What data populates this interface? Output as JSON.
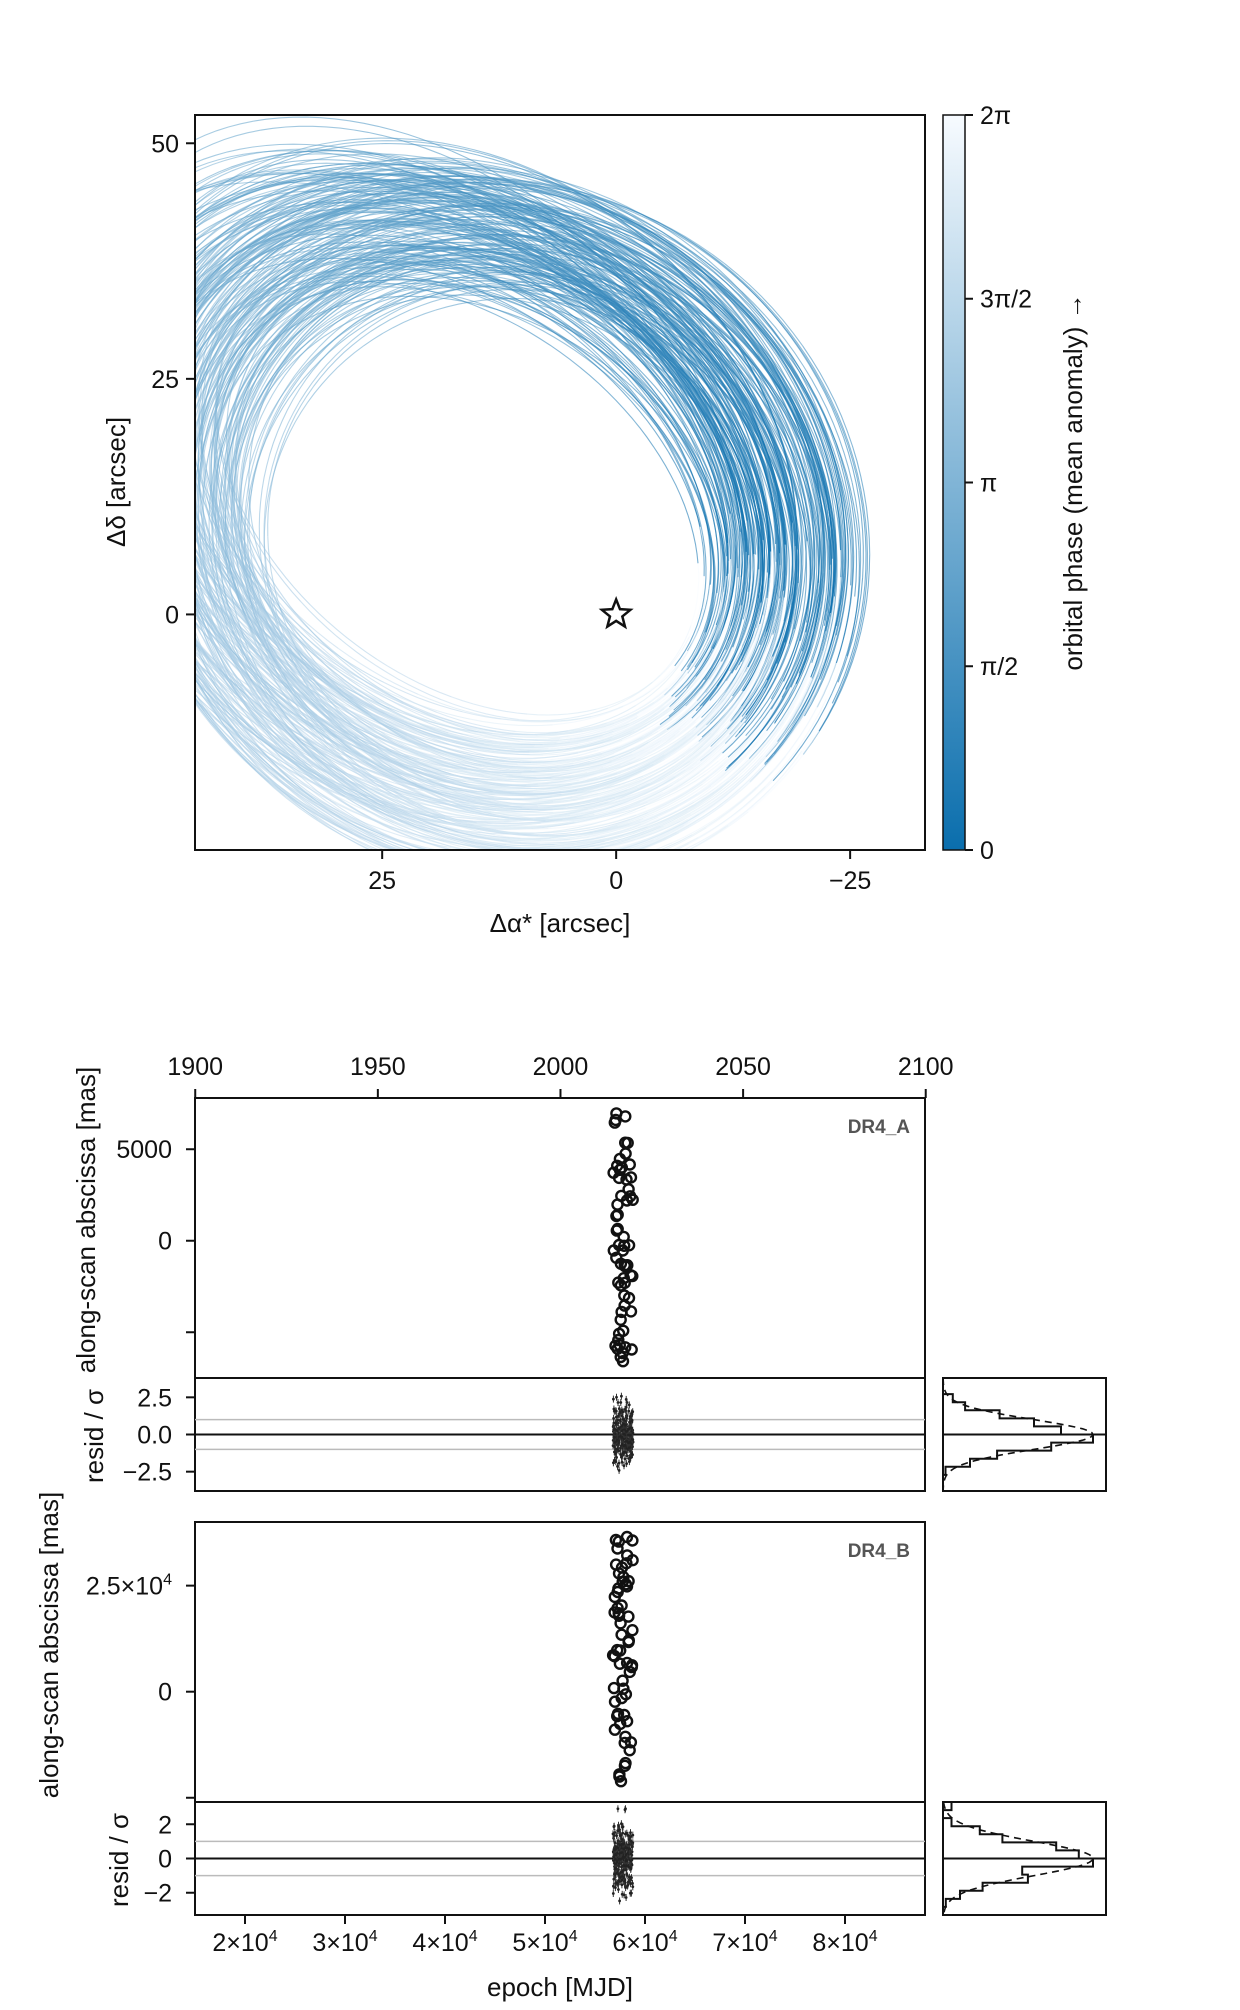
{
  "chart_data": [
    {
      "type": "line",
      "panel": "orbit-sky-plot",
      "xlabel": "Δα* [arcsec]",
      "ylabel": "Δδ [arcsec]",
      "xlim": [
        45,
        -33
      ],
      "ylim": [
        -25,
        53
      ],
      "x_ticks": [
        25,
        0,
        -25
      ],
      "x_tick_labels": [
        "25",
        "0",
        "−25"
      ],
      "y_ticks": [
        50,
        25,
        0
      ],
      "y_tick_labels": [
        "50",
        "25",
        "0"
      ],
      "star_marker": {
        "x": 0,
        "y": 0
      },
      "orbit_family": {
        "n_orbits": 220,
        "semi_major_range": [
          29,
          40
        ],
        "eccentricity_range": [
          0.35,
          0.75
        ],
        "tilt_deg_range": [
          -42,
          -30
        ]
      },
      "colorbar": {
        "label": "orbital phase (mean anomaly) →",
        "ticks": [
          0,
          1.5708,
          3.1416,
          4.7124,
          6.2832
        ],
        "tick_labels": [
          "0",
          "π/2",
          "π",
          "3π/2",
          "2π"
        ],
        "color_low": "#0a6ead",
        "color_high": "#f7fbff"
      },
      "grid": false
    },
    {
      "type": "scatter",
      "panel": "DR4_A",
      "tag": "DR4_A",
      "top_axis_year_ticks": [
        1900,
        1950,
        2000,
        2050,
        2100
      ],
      "top_axis_year_labels": [
        "1900",
        "1950",
        "2000",
        "2050",
        "2100"
      ],
      "ylabel": "along-scan abscissa [mas]",
      "ylim": [
        -7500,
        7800
      ],
      "y_tick_labels": [
        "5000",
        "0"
      ],
      "y_ticks": [
        5000,
        0,
        -5000
      ],
      "x_mjd_range": [
        56800,
        58800
      ],
      "n_points": 60,
      "resid": {
        "ylabel": "resid / σ",
        "ylim": [
          -3.8,
          3.8
        ],
        "y_ticks": [
          2.5,
          0.0,
          -2.5
        ],
        "y_tick_labels": [
          "2.5",
          "0.0",
          "−2.5"
        ],
        "bands": [
          1,
          -1
        ]
      }
    },
    {
      "type": "scatter",
      "panel": "DR4_B",
      "tag": "DR4_B",
      "ylabel": "along-scan abscissa [mas]",
      "ylim": [
        -26000,
        40000
      ],
      "y_ticks": [
        25000,
        0,
        -25000
      ],
      "y_tick_labels": [
        "2.5×10",
        "0"
      ],
      "y_tick_exponents": [
        "4",
        ""
      ],
      "x_mjd_range": [
        56800,
        58800
      ],
      "n_points": 60,
      "xlabel": "epoch [MJD]",
      "xlim": [
        15000,
        88000
      ],
      "x_ticks": [
        20000,
        30000,
        40000,
        50000,
        60000,
        70000,
        80000
      ],
      "x_tick_bases": [
        "2×10",
        "3×10",
        "4×10",
        "5×10",
        "6×10",
        "7×10",
        "8×10"
      ],
      "x_tick_exponent": "4",
      "resid": {
        "ylabel": "resid / σ",
        "ylim": [
          -3.3,
          3.3
        ],
        "y_ticks": [
          2,
          0,
          -2
        ],
        "y_tick_labels": [
          "2",
          "0",
          "−2"
        ],
        "bands": [
          1,
          -1
        ]
      }
    }
  ]
}
